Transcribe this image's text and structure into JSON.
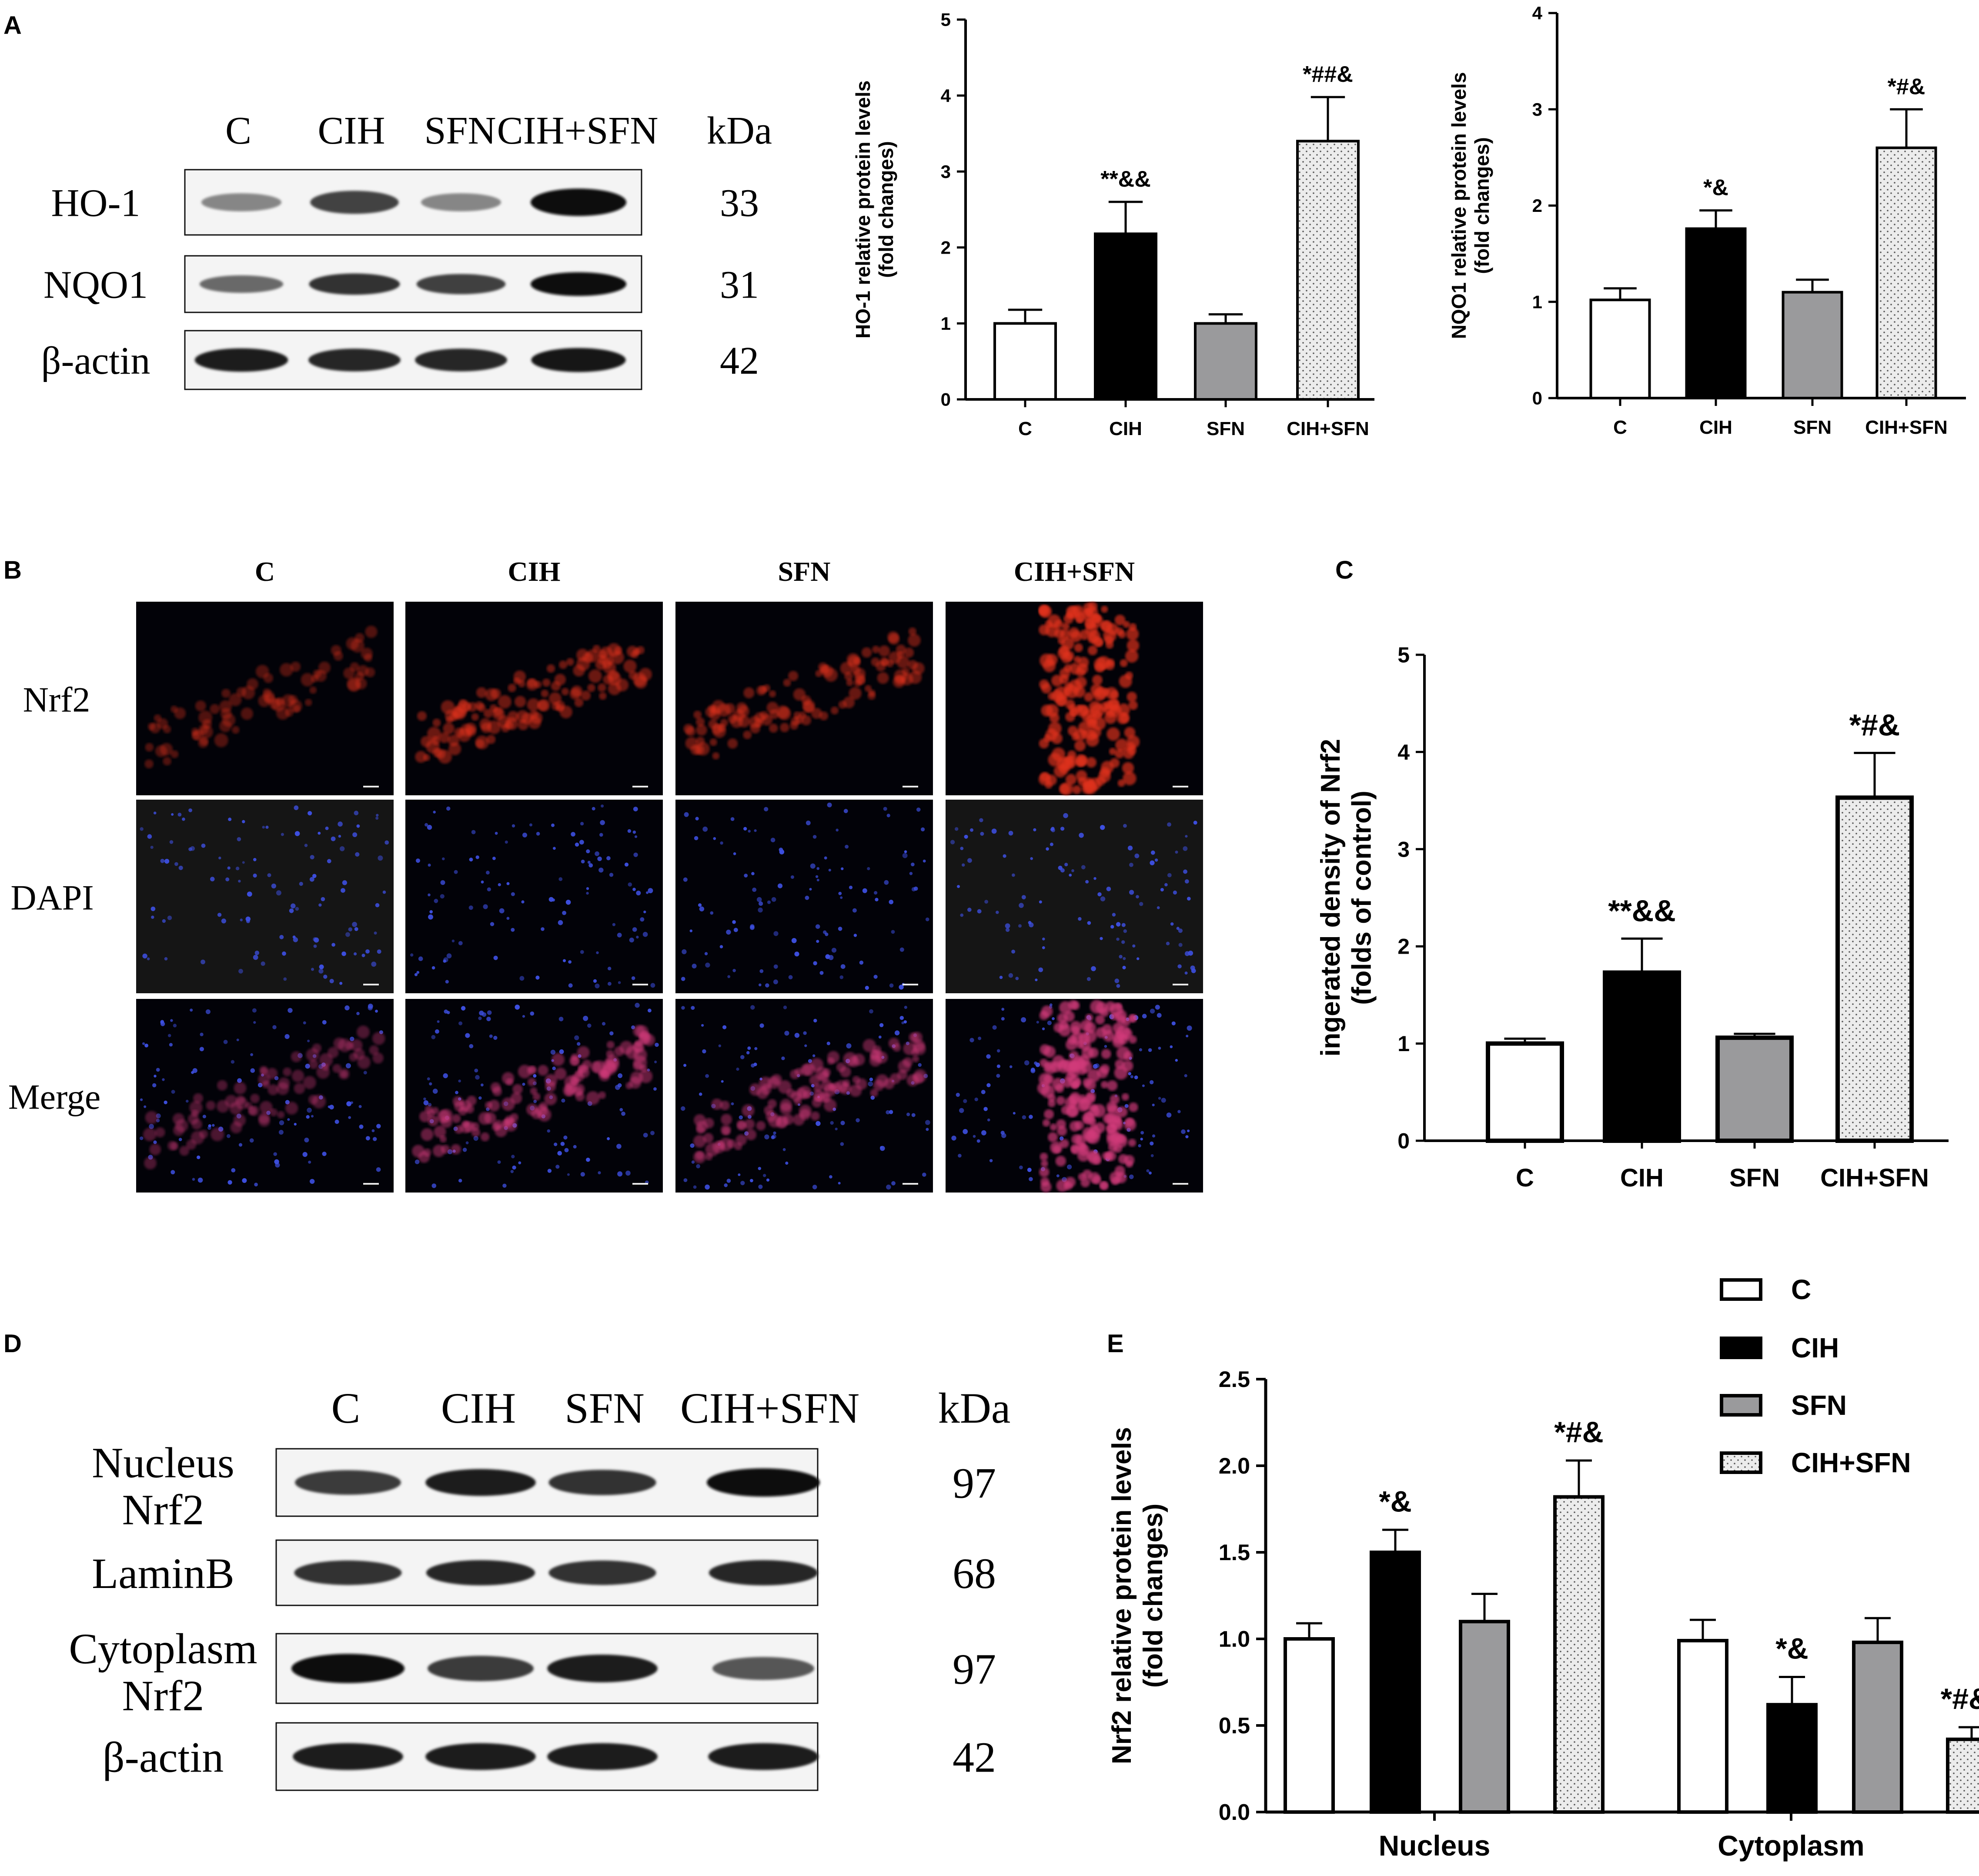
{
  "panel_labels": [
    "A",
    "B",
    "C",
    "D",
    "E"
  ],
  "blot_a": {
    "lanes": [
      "C",
      "CIH",
      "SFN",
      "CIH+SFN"
    ],
    "unit_label": "kDa",
    "rows": [
      {
        "name": "HO-1",
        "kda": "33",
        "intensity": [
          0.35,
          0.7,
          0.35,
          1.0
        ]
      },
      {
        "name": "NQO1",
        "kda": "31",
        "intensity": [
          0.5,
          0.8,
          0.72,
          1.0
        ]
      },
      {
        "name": "β-actin",
        "kda": "42",
        "intensity": [
          0.9,
          0.85,
          0.85,
          0.95
        ]
      }
    ]
  },
  "if_panel": {
    "columns": [
      "C",
      "CIH",
      "SFN",
      "CIH+SFN"
    ],
    "rows": [
      "Nrf2",
      "DAPI",
      "Merge"
    ],
    "red_level": [
      0.2,
      0.45,
      0.4,
      0.85
    ]
  },
  "blot_d": {
    "lanes": [
      "C",
      "CIH",
      "SFN",
      "CIH+SFN"
    ],
    "unit_label": "kDa",
    "rows": [
      {
        "name": "Nucleus\nNrf2",
        "lines": [
          "Nucleus",
          "Nrf2"
        ],
        "kda": "97",
        "intensity": [
          0.75,
          0.9,
          0.8,
          1.0
        ]
      },
      {
        "name": "LaminB",
        "lines": [
          "LaminB"
        ],
        "kda": "68",
        "intensity": [
          0.8,
          0.85,
          0.8,
          0.85
        ]
      },
      {
        "name": "Cytoplasm\nNrf2",
        "lines": [
          "Cytoplasm",
          "Nrf2"
        ],
        "kda": "97",
        "intensity": [
          1.0,
          0.75,
          0.9,
          0.6
        ]
      },
      {
        "name": "β-actin",
        "lines": [
          "β-actin"
        ],
        "kda": "42",
        "intensity": [
          0.9,
          0.9,
          0.9,
          0.9
        ]
      }
    ]
  },
  "chart_data": [
    {
      "id": "A-HO1",
      "type": "bar",
      "categories": [
        "C",
        "CIH",
        "SFN",
        "CIH+SFN"
      ],
      "values": [
        1.0,
        2.18,
        1.0,
        3.4
      ],
      "errors": [
        0.18,
        0.42,
        0.12,
        0.58
      ],
      "annotations": [
        "",
        "**&&",
        "",
        "*##&"
      ],
      "ylabel": "HO-1 relative protein levels\n(fold changes)",
      "ylim": [
        0,
        5
      ],
      "yticks": [
        0,
        1,
        2,
        3,
        4,
        5
      ],
      "fills": [
        "white",
        "black",
        "gray",
        "dotted"
      ]
    },
    {
      "id": "A-NQO1",
      "type": "bar",
      "categories": [
        "C",
        "CIH",
        "SFN",
        "CIH+SFN"
      ],
      "values": [
        1.02,
        1.76,
        1.1,
        2.6
      ],
      "errors": [
        0.12,
        0.19,
        0.13,
        0.4
      ],
      "annotations": [
        "",
        "*&",
        "",
        "*#&"
      ],
      "ylabel": "NQO1 relative protein levels\n(fold changes)",
      "ylim": [
        0,
        4
      ],
      "yticks": [
        0,
        1,
        2,
        3,
        4
      ],
      "fills": [
        "white",
        "black",
        "gray",
        "dotted"
      ]
    },
    {
      "id": "C-Nrf2",
      "type": "bar",
      "categories": [
        "C",
        "CIH",
        "SFN",
        "CIH+SFN"
      ],
      "values": [
        1.0,
        1.73,
        1.06,
        3.53
      ],
      "errors": [
        0.05,
        0.35,
        0.04,
        0.46
      ],
      "annotations": [
        "",
        "**&&",
        "",
        "*#&"
      ],
      "ylabel": "ingerated density of Nrf2\n(folds of control)",
      "ylim": [
        0,
        5
      ],
      "yticks": [
        0,
        1,
        2,
        3,
        4,
        5
      ],
      "fills": [
        "white",
        "black",
        "gray",
        "dotted"
      ]
    },
    {
      "id": "E-Nrf2",
      "type": "bar",
      "groups": [
        "Nucleus",
        "Cytoplasm"
      ],
      "series": [
        {
          "name": "C",
          "values": [
            1.0,
            0.99
          ],
          "errors": [
            0.09,
            0.12
          ],
          "annotations": [
            "",
            ""
          ],
          "fill": "white"
        },
        {
          "name": "CIH",
          "values": [
            1.5,
            0.62
          ],
          "errors": [
            0.13,
            0.16
          ],
          "annotations": [
            "*&",
            "*&"
          ],
          "fill": "black"
        },
        {
          "name": "SFN",
          "values": [
            1.1,
            0.98
          ],
          "errors": [
            0.16,
            0.14
          ],
          "annotations": [
            "",
            ""
          ],
          "fill": "gray"
        },
        {
          "name": "CIH+SFN",
          "values": [
            1.82,
            0.42
          ],
          "errors": [
            0.21,
            0.07
          ],
          "annotations": [
            "*#&",
            "*#&&"
          ],
          "fill": "dotted"
        }
      ],
      "ylabel": "Nrf2 relative protein levels\n(fold changes)",
      "ylim": [
        0,
        2.5
      ],
      "yticks": [
        "0.0",
        "0.5",
        "1.0",
        "1.5",
        "2.0",
        "2.5"
      ],
      "legend": "top-right"
    }
  ],
  "colors": {
    "black": "#000000",
    "gray": "#9a9a9c",
    "white": "#ffffff",
    "dotted_bg": "#ececec"
  }
}
